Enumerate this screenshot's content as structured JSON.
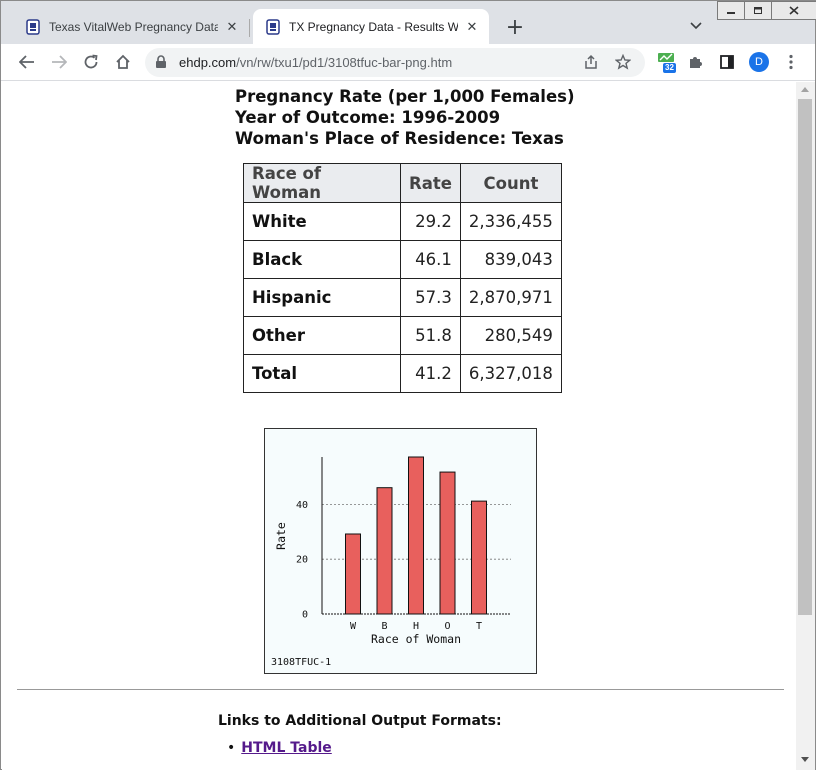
{
  "browser": {
    "tabs": [
      {
        "title": "Texas VitalWeb Pregnancy Data -",
        "active": false
      },
      {
        "title": "TX Pregnancy Data - Results Win",
        "active": true
      }
    ],
    "new_tab": "+",
    "url_host": "ehdp.com",
    "url_path": "/vn/rw/txu1/pd1/3108tfuc-bar-png.htm",
    "extension_badge": "32",
    "profile_initial": "D"
  },
  "page": {
    "heading_lines": [
      "Pregnancy Rate (per 1,000 Females)",
      "Year of Outcome: 1996-2009",
      "Woman's Place of Residence: Texas"
    ],
    "table": {
      "headers": [
        "Race of Woman",
        "Rate",
        "Count"
      ],
      "rows": [
        [
          "White",
          "29.2",
          "2,336,455"
        ],
        [
          "Black",
          "46.1",
          "839,043"
        ],
        [
          "Hispanic",
          "57.3",
          "2,870,971"
        ],
        [
          "Other",
          "51.8",
          "280,549"
        ],
        [
          "Total",
          "41.2",
          "6,327,018"
        ]
      ]
    },
    "links_heading": "Links to Additional Output Formats:",
    "links": [
      {
        "bullet": "•",
        "label": "HTML Table"
      }
    ]
  },
  "chart_data": {
    "type": "bar",
    "categories": [
      "W",
      "B",
      "H",
      "O",
      "T"
    ],
    "values": [
      29.2,
      46.1,
      57.3,
      51.8,
      41.2
    ],
    "xlabel": "Race of Woman",
    "ylabel": "Rate",
    "yticks": [
      0,
      20,
      40
    ],
    "ylim": [
      0,
      57.3
    ],
    "grid": true,
    "bar_color": "#e8605d",
    "background": "#f6fcfd",
    "footnote": "3108TFUC-1"
  }
}
